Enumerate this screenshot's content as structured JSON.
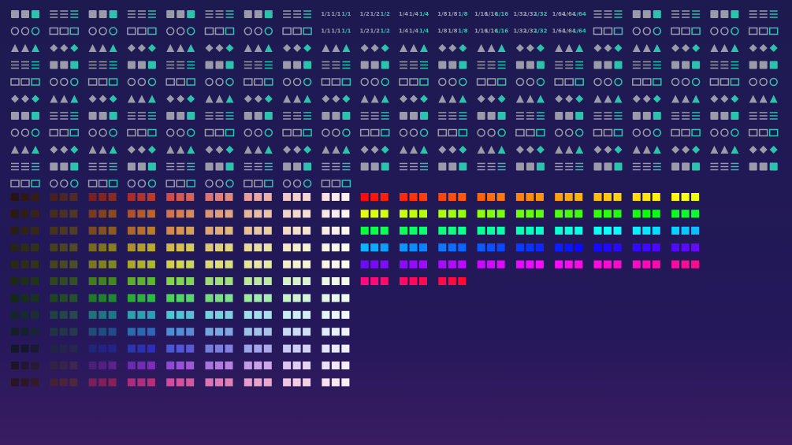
{
  "fractions": [
    "1/1",
    "1/2",
    "1/4",
    "1/8",
    "1/16",
    "1/32",
    "1/64"
  ]
}
